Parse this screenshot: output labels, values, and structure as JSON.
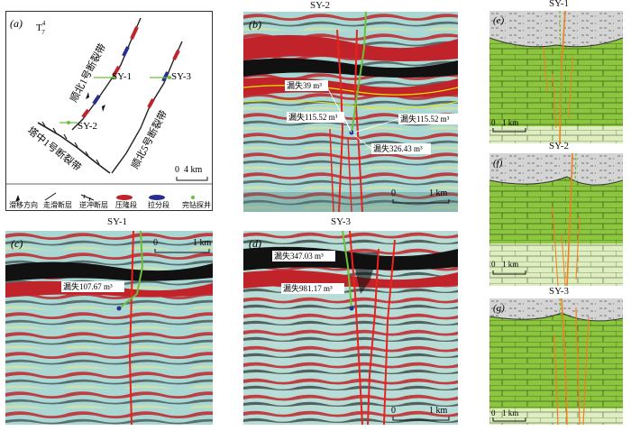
{
  "panel_a": {
    "label": "(a)",
    "horizon": "T",
    "horizon_sup": "4",
    "horizon_sub": "7",
    "fault_label_top": "顺北1号断裂带",
    "fault_label_right": "顺北5号断裂带",
    "fault_label_bottom": "塔中1号断裂带",
    "wells": [
      "SY-1",
      "SY-2",
      "SY-3"
    ],
    "scale": "4 km",
    "scale_zero": "0",
    "legend": [
      "滑移方向",
      "走滑断层",
      "逆冲断层",
      "压隆段",
      "拉分段",
      "完钻探井"
    ]
  },
  "panel_b": {
    "title": "SY-2",
    "label": "(b)",
    "annotations": [
      "漏失39 m³",
      "漏失115.52 m³",
      "漏失115.52 m³",
      "漏失326.43 m³"
    ],
    "scale": "1 km",
    "scale_zero": "0"
  },
  "panel_c": {
    "title": "SY-1",
    "label": "(c)",
    "annotations": [
      "漏失107.67 m³"
    ],
    "scale": "1 km",
    "scale_zero": "0"
  },
  "panel_d": {
    "title": "SY-3",
    "label": "(d)",
    "annotations": [
      "漏失347.03 m³",
      "漏失981.17 m³"
    ],
    "scale": "1 km",
    "scale_zero": "0"
  },
  "panel_e": {
    "title": "SY-1",
    "label": "(e)",
    "scale": "1 km",
    "scale_zero": "0"
  },
  "panel_f": {
    "title": "SY-2",
    "label": "(f)",
    "scale": "1 km",
    "scale_zero": "0"
  },
  "panel_g": {
    "title": "SY-3",
    "label": "(g)",
    "scale": "1 km",
    "scale_zero": "0"
  },
  "colors": {
    "seismic_red": "#c0242a",
    "seismic_black": "#111111",
    "seismic_cyan": "#a9d7d3",
    "limestone_green": "#8cc63f",
    "fault_red": "#e8231f",
    "fracture_orange": "#f07f1e",
    "well_green": "#6dbf3a"
  }
}
